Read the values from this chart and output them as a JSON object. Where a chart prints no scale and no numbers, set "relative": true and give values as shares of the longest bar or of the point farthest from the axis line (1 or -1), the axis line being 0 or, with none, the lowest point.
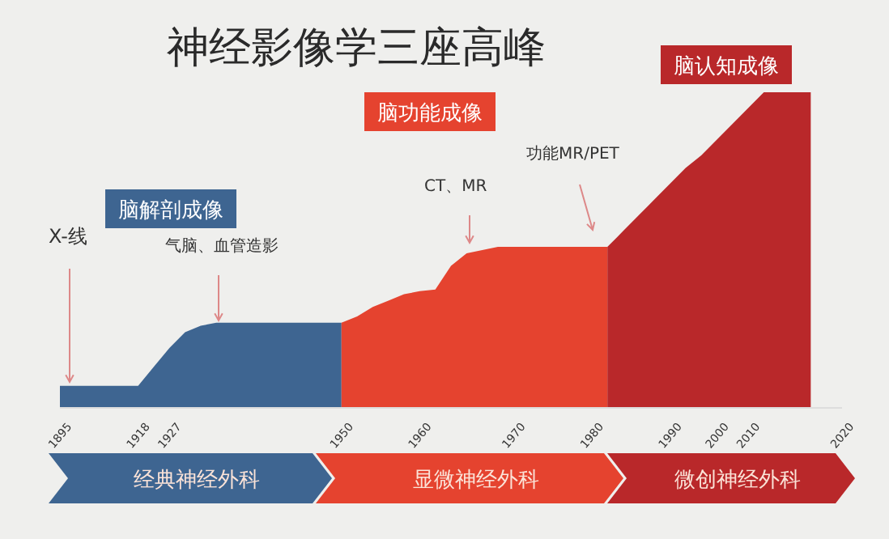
{
  "chart_data": {
    "type": "area",
    "title": "神经影像学三座高峰",
    "relative": true,
    "categories": [
      "1895",
      null,
      null,
      null,
      null,
      "1918",
      null,
      "1927",
      null,
      null,
      null,
      null,
      null,
      null,
      null,
      null,
      null,
      null,
      "1950",
      null,
      null,
      null,
      null,
      "1960",
      null,
      null,
      null,
      null,
      null,
      "1970",
      null,
      null,
      null,
      null,
      "1980",
      null,
      null,
      null,
      null,
      "1990",
      null,
      null,
      "2000",
      null,
      "2010",
      null,
      null,
      null,
      null,
      null,
      "2020"
    ],
    "series": [
      {
        "name": "脑解剖成像",
        "color": "#3e6591",
        "values": [
          0.07,
          0.07,
          0.07,
          0.07,
          0.07,
          0.07,
          0.13,
          0.19,
          0.24,
          0.26,
          0.27,
          0.27,
          0.27,
          0.27,
          0.27,
          0.27,
          0.27,
          0.27,
          0.27,
          null,
          null,
          null,
          null,
          null,
          null,
          null,
          null,
          null,
          null,
          null,
          null,
          null,
          null,
          null,
          null,
          null,
          null,
          null,
          null,
          null,
          null,
          null,
          null,
          null,
          null,
          null,
          null,
          null,
          null,
          null,
          null
        ]
      },
      {
        "name": "脑功能成像",
        "color": "#e5432f",
        "values": [
          null,
          null,
          null,
          null,
          null,
          null,
          null,
          null,
          null,
          null,
          null,
          null,
          null,
          null,
          null,
          null,
          null,
          null,
          0.27,
          0.29,
          0.32,
          0.34,
          0.36,
          0.37,
          0.375,
          0.45,
          0.49,
          0.5,
          0.51,
          0.51,
          0.51,
          0.51,
          0.51,
          0.51,
          0.51,
          0.51,
          null,
          null,
          null,
          null,
          null,
          null,
          null,
          null,
          null,
          null,
          null,
          null,
          null,
          null,
          null
        ]
      },
      {
        "name": "脑认知成像",
        "color": "#b9282a",
        "values": [
          null,
          null,
          null,
          null,
          null,
          null,
          null,
          null,
          null,
          null,
          null,
          null,
          null,
          null,
          null,
          null,
          null,
          null,
          null,
          null,
          null,
          null,
          null,
          null,
          null,
          null,
          null,
          null,
          null,
          null,
          null,
          null,
          null,
          null,
          null,
          0.51,
          0.56,
          0.61,
          0.66,
          0.71,
          0.76,
          0.8,
          0.85,
          0.9,
          0.95,
          1,
          1,
          1,
          1,
          null,
          null
        ]
      }
    ],
    "annotations": [
      "X-线",
      "气脑、血管造影",
      "CT、MR",
      "功能MR/PET",
      "经典神经外科",
      "显微神经外科",
      "微创神经外科"
    ]
  }
}
